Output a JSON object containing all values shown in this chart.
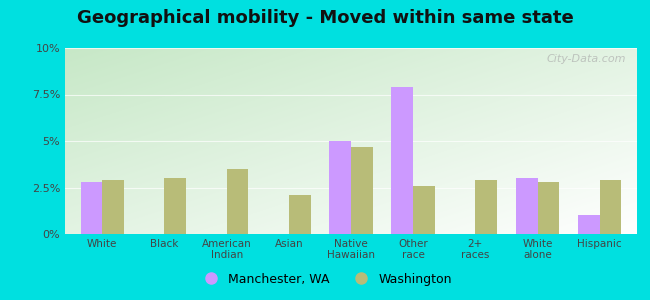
{
  "title": "Geographical mobility - Moved within same state",
  "categories": [
    "White",
    "Black",
    "American\nIndian",
    "Asian",
    "Native\nHawaiian",
    "Other\nrace",
    "2+\nraces",
    "White\nalone",
    "Hispanic"
  ],
  "manchester_values": [
    2.8,
    0,
    0,
    0,
    5.0,
    7.9,
    0,
    3.0,
    1.0
  ],
  "washington_values": [
    2.9,
    3.0,
    3.5,
    2.1,
    4.7,
    2.6,
    2.9,
    2.8,
    2.9
  ],
  "manchester_color": "#cc99ff",
  "washington_color": "#b8bc78",
  "ylim": [
    0,
    10
  ],
  "yticks": [
    0,
    2.5,
    5.0,
    7.5,
    10.0
  ],
  "ytick_labels": [
    "0%",
    "2.5%",
    "5%",
    "7.5%",
    "10%"
  ],
  "legend_labels": [
    "Manchester, WA",
    "Washington"
  ],
  "background_outer": "#00e0e0",
  "bar_width": 0.35,
  "title_fontsize": 13,
  "watermark": "City-Data.com"
}
